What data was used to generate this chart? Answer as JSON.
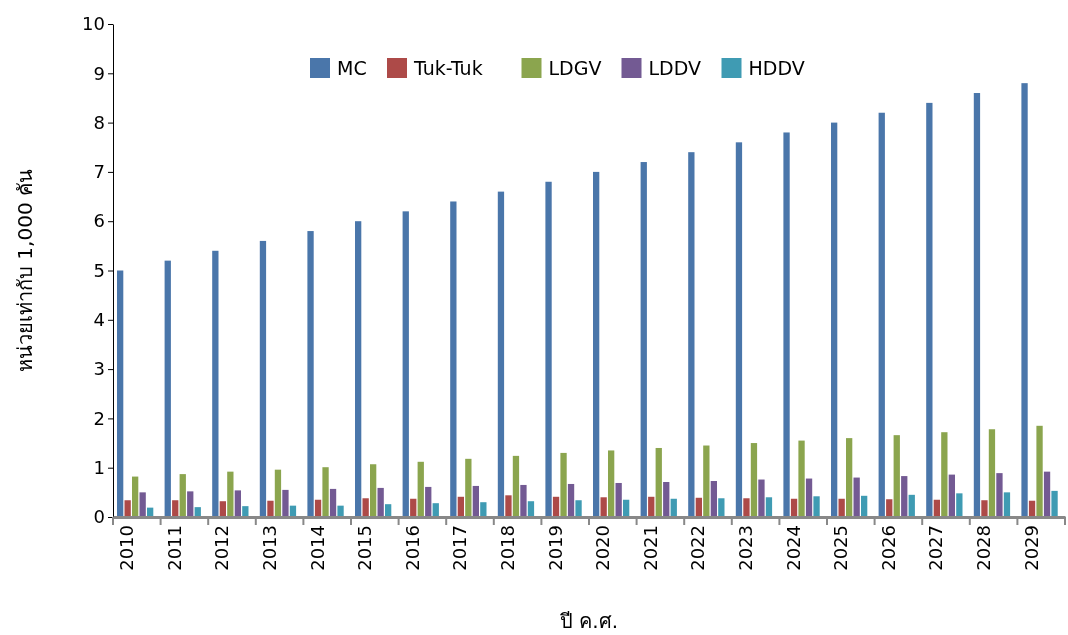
{
  "chart_data": {
    "type": "bar",
    "xlabel": "ปี ค.ศ.",
    "ylabel": "หน่วยเท่ากับ 1,000 คัน",
    "categories": [
      "2010",
      "2011",
      "2012",
      "2013",
      "2014",
      "2015",
      "2016",
      "2017",
      "2018",
      "2019",
      "2020",
      "2021",
      "2022",
      "2023",
      "2024",
      "2025",
      "2026",
      "2027",
      "2028",
      "2029"
    ],
    "series": [
      {
        "name": "MC",
        "color": "#4a76aa",
        "values": [
          5.0,
          5.2,
          5.4,
          5.6,
          5.8,
          6.0,
          6.2,
          6.4,
          6.6,
          6.8,
          7.0,
          7.2,
          7.4,
          7.6,
          7.8,
          8.0,
          8.2,
          8.4,
          8.6,
          8.8
        ]
      },
      {
        "name": "Tuk-Tuk",
        "color": "#ad4a48",
        "values": [
          0.34,
          0.34,
          0.32,
          0.33,
          0.35,
          0.38,
          0.37,
          0.41,
          0.44,
          0.41,
          0.4,
          0.41,
          0.39,
          0.38,
          0.37,
          0.37,
          0.36,
          0.35,
          0.34,
          0.33
        ]
      },
      {
        "name": "LDGV",
        "color": "#8ba54e",
        "values": [
          0.82,
          0.87,
          0.92,
          0.96,
          1.01,
          1.07,
          1.12,
          1.18,
          1.24,
          1.3,
          1.35,
          1.4,
          1.45,
          1.5,
          1.55,
          1.6,
          1.66,
          1.72,
          1.78,
          1.85
        ]
      },
      {
        "name": "LDDV",
        "color": "#735a93",
        "values": [
          0.5,
          0.52,
          0.54,
          0.55,
          0.57,
          0.59,
          0.61,
          0.63,
          0.65,
          0.67,
          0.69,
          0.71,
          0.73,
          0.76,
          0.78,
          0.8,
          0.83,
          0.86,
          0.89,
          0.92
        ]
      },
      {
        "name": "HDDV",
        "color": "#3f9bb3",
        "values": [
          0.19,
          0.2,
          0.22,
          0.23,
          0.23,
          0.26,
          0.28,
          0.3,
          0.32,
          0.34,
          0.35,
          0.37,
          0.38,
          0.4,
          0.42,
          0.43,
          0.45,
          0.48,
          0.5,
          0.53
        ]
      }
    ],
    "ylim": [
      0,
      10
    ],
    "yticks": [
      0,
      1,
      2,
      3,
      4,
      5,
      6,
      7,
      8,
      9,
      10
    ],
    "grid": false,
    "legend": "top"
  }
}
